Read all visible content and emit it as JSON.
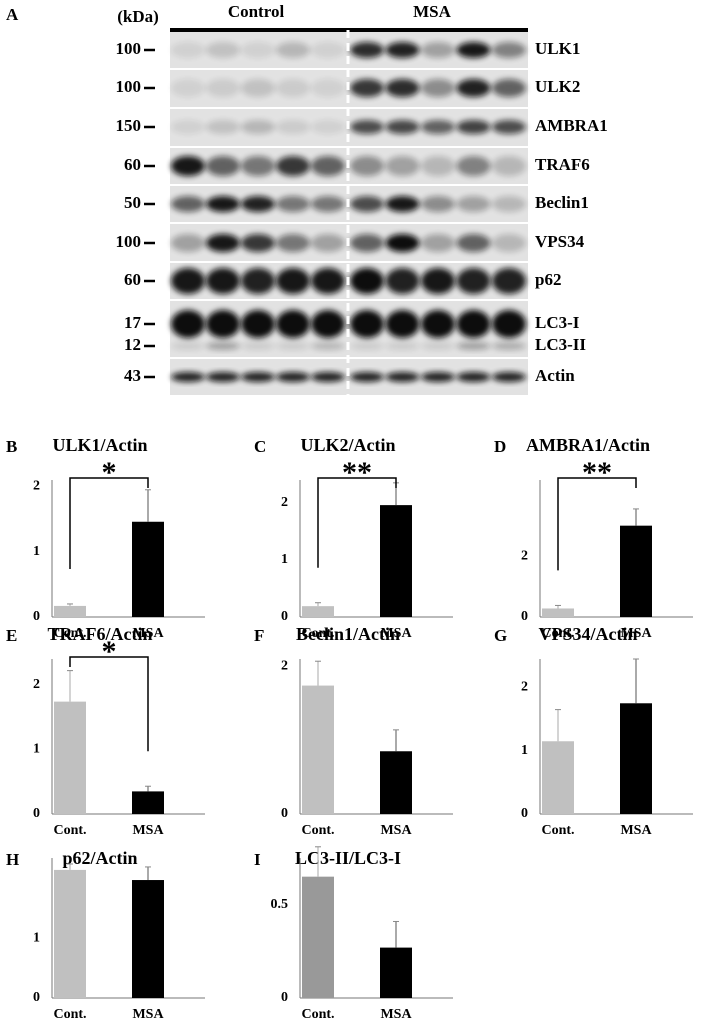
{
  "blot": {
    "panel": "A",
    "unit": "(kDa)",
    "groups": [
      "Control",
      "MSA"
    ],
    "rows": [
      {
        "marker": "100",
        "name": "ULK1"
      },
      {
        "marker": "100",
        "name": "ULK2"
      },
      {
        "marker": "150",
        "name": "AMBRA1"
      },
      {
        "marker": "60",
        "name": "TRAF6"
      },
      {
        "marker": "50",
        "name": "Beclin1"
      },
      {
        "marker": "100",
        "name": "VPS34"
      },
      {
        "marker": "60",
        "name": "p62"
      },
      {
        "marker": "17",
        "name": "LC3-I"
      },
      {
        "marker": "12",
        "name": "LC3-II"
      },
      {
        "marker": "43",
        "name": "Actin"
      }
    ]
  },
  "chart_data": [
    {
      "type": "bar",
      "panel": "B",
      "title": "ULK1/Actin",
      "categories": [
        "Cont.",
        "MSA"
      ],
      "values": [
        0.17,
        1.46
      ],
      "errors": [
        0.03,
        0.49
      ],
      "colors": [
        "#c0c0c0",
        "#000000"
      ],
      "ylim": [
        0,
        2.1
      ],
      "yticks": [
        0,
        1,
        2
      ],
      "annotation": "*"
    },
    {
      "type": "bar",
      "panel": "C",
      "title": "ULK2/Actin",
      "categories": [
        "Cont.",
        "MSA"
      ],
      "values": [
        0.19,
        1.96
      ],
      "errors": [
        0.06,
        0.39
      ],
      "colors": [
        "#c0c0c0",
        "#000000"
      ],
      "ylim": [
        0,
        2.4
      ],
      "yticks": [
        0,
        1,
        2
      ],
      "annotation": "**"
    },
    {
      "type": "bar",
      "panel": "D",
      "title": "AMBRA1/Actin",
      "categories": [
        "Cont.",
        "MSA"
      ],
      "values": [
        0.28,
        3.0
      ],
      "errors": [
        0.1,
        0.55
      ],
      "colors": [
        "#c0c0c0",
        "#000000"
      ],
      "ylim": [
        0,
        4.5
      ],
      "yticks": [
        0,
        2
      ],
      "annotation": "**"
    },
    {
      "type": "bar",
      "panel": "E",
      "title": "TRAF6/Actin",
      "categories": [
        "Cont.",
        "MSA"
      ],
      "values": [
        1.74,
        0.35
      ],
      "errors": [
        0.48,
        0.08
      ],
      "colors": [
        "#c0c0c0",
        "#000000"
      ],
      "ylim": [
        0,
        2.4
      ],
      "yticks": [
        0,
        1,
        2
      ],
      "annotation": "*"
    },
    {
      "type": "bar",
      "panel": "F",
      "title": "Beclin1/Actin",
      "categories": [
        "Cont.",
        "MSA"
      ],
      "values": [
        1.74,
        0.85
      ],
      "errors": [
        0.33,
        0.29
      ],
      "colors": [
        "#c0c0c0",
        "#000000"
      ],
      "ylim": [
        0,
        2.1
      ],
      "yticks": [
        0,
        2
      ]
    },
    {
      "type": "bar",
      "panel": "G",
      "title": "VPS34/Actin",
      "categories": [
        "Cont.",
        "MSA"
      ],
      "values": [
        1.15,
        1.75
      ],
      "errors": [
        0.5,
        0.7
      ],
      "colors": [
        "#c0c0c0",
        "#000000"
      ],
      "ylim": [
        0,
        2.45
      ],
      "yticks": [
        0,
        1,
        2
      ]
    },
    {
      "type": "bar",
      "panel": "H",
      "title": "p62/Actin",
      "categories": [
        "Cont.",
        "MSA"
      ],
      "values": [
        2.15,
        1.98
      ],
      "errors": [
        0.1,
        0.22
      ],
      "colors": [
        "#c0c0c0",
        "#000000"
      ],
      "ylim": [
        0,
        2.35
      ],
      "yticks": [
        0,
        1
      ]
    },
    {
      "type": "bar",
      "panel": "I",
      "title": "LC3-II/LC3-I",
      "categories": [
        "Cont.",
        "MSA"
      ],
      "values": [
        0.65,
        0.27
      ],
      "errors": [
        0.16,
        0.14
      ],
      "colors": [
        "#999999",
        "#000000"
      ],
      "ylim": [
        0,
        0.75
      ],
      "yticks": [
        0,
        0.5
      ]
    }
  ]
}
